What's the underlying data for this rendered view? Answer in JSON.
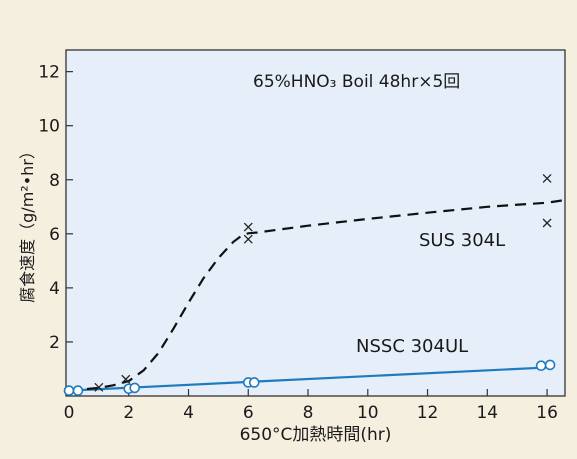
{
  "chart_data": {
    "type": "line",
    "title": "65%HNO₃ Boil 48hr×5回",
    "xlabel": "650°C加熱時間(hr)",
    "ylabel": "腐食速度（g/m²•hr）",
    "xlim": [
      -0.1,
      16.6
    ],
    "ylim": [
      0,
      12.8
    ],
    "xticks": [
      0,
      2,
      4,
      6,
      8,
      10,
      12,
      14,
      16
    ],
    "yticks": [
      2,
      4,
      6,
      8,
      10,
      12
    ],
    "grid": false,
    "colors": {
      "background": "#f4efdf",
      "plot_area": "#e6eefa",
      "nssc": "#1f7bbf",
      "sus": "#111111"
    },
    "series": [
      {
        "name": "SUS 304L",
        "marker": "x",
        "line": "dashed",
        "points": [
          [
            1.0,
            0.32
          ],
          [
            1.9,
            0.62
          ],
          [
            6.0,
            6.25
          ],
          [
            6.0,
            5.8
          ],
          [
            16.0,
            8.05
          ],
          [
            16.0,
            6.4
          ]
        ],
        "curve": [
          [
            0.0,
            0.2
          ],
          [
            1.0,
            0.3
          ],
          [
            1.5,
            0.4
          ],
          [
            2.0,
            0.55
          ],
          [
            2.5,
            0.95
          ],
          [
            3.0,
            1.6
          ],
          [
            3.5,
            2.5
          ],
          [
            4.0,
            3.45
          ],
          [
            4.5,
            4.35
          ],
          [
            5.0,
            5.1
          ],
          [
            5.5,
            5.7
          ],
          [
            5.8,
            5.95
          ],
          [
            6.0,
            6.02
          ],
          [
            6.3,
            6.05
          ],
          [
            8.0,
            6.3
          ],
          [
            10.0,
            6.55
          ],
          [
            12.0,
            6.78
          ],
          [
            14.0,
            7.0
          ],
          [
            16.0,
            7.15
          ],
          [
            16.6,
            7.25
          ]
        ]
      },
      {
        "name": "NSSC 304UL",
        "marker": "circle",
        "line": "solid",
        "points": [
          [
            0.0,
            0.2
          ],
          [
            0.3,
            0.2
          ],
          [
            2.0,
            0.27
          ],
          [
            2.2,
            0.3
          ],
          [
            6.0,
            0.5
          ],
          [
            6.2,
            0.5
          ],
          [
            15.8,
            1.12
          ],
          [
            16.1,
            1.15
          ]
        ],
        "curve": [
          [
            0.0,
            0.2
          ],
          [
            16.1,
            1.06
          ]
        ]
      }
    ]
  }
}
